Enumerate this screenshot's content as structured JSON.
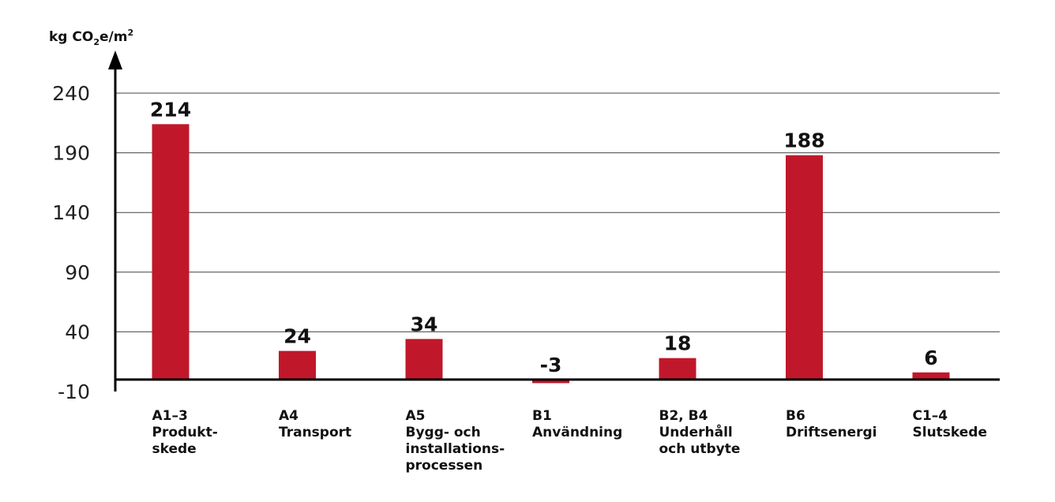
{
  "chart_data": {
    "type": "bar",
    "unit": {
      "prefix": "kg CO",
      "sub": "2",
      "mid": "e/m",
      "sup": "2"
    },
    "yticks": [
      240,
      190,
      140,
      90,
      40,
      -10
    ],
    "ylim": [
      -10,
      240
    ],
    "grid": true,
    "categories": [
      {
        "code": "A1–3",
        "lines": [
          "Produkt-",
          "skede"
        ]
      },
      {
        "code": "A4",
        "lines": [
          "Transport"
        ]
      },
      {
        "code": "A5",
        "lines": [
          "Bygg- och",
          "installations-",
          "processen"
        ]
      },
      {
        "code": "B1",
        "lines": [
          "Användning"
        ]
      },
      {
        "code": "B2, B4",
        "lines": [
          "Underhåll",
          "och utbyte"
        ]
      },
      {
        "code": "B6",
        "lines": [
          "Driftsenergi"
        ]
      },
      {
        "code": "C1–4",
        "lines": [
          "Slutskede"
        ]
      }
    ],
    "values": [
      214,
      24,
      34,
      -3,
      18,
      188,
      6
    ],
    "value_labels": [
      "214",
      "24",
      "34",
      "-3",
      "18",
      "188",
      "6"
    ],
    "bar_color": "#c0182a"
  }
}
